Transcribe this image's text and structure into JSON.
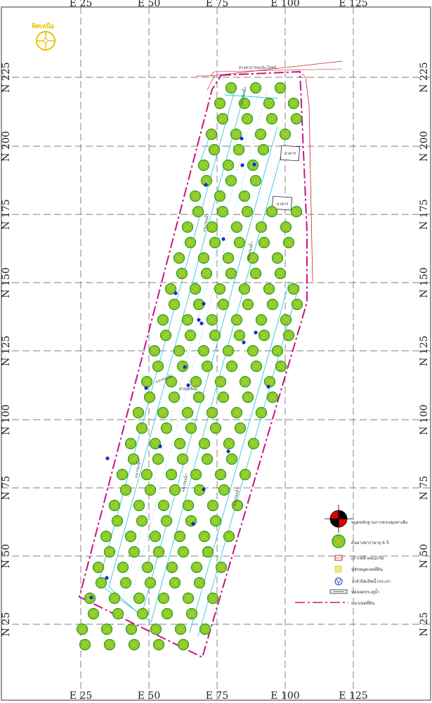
{
  "grid": {
    "x_labels": [
      "E 25",
      "E 50",
      "E 75",
      "E 100",
      "E 125"
    ],
    "y_labels": [
      "N 225",
      "N 200",
      "N 175",
      "N 150",
      "N 125",
      "N 100",
      "N 75",
      "N 50",
      "N 25"
    ]
  },
  "compass": {
    "label": "ทิศเหนือ"
  },
  "road": {
    "label": "ทางสาธารณประโยชน์"
  },
  "buildings": [
    {
      "label": "อาคาร"
    },
    {
      "label": "อาคาร"
    }
  ],
  "canal_labels": [
    "แนวร่องน้ำ",
    "แนวร่องน้ำ",
    "แนวร่องน้ำ",
    "แนวร่องน้ำ",
    "แนวร่องน้ำ",
    "แนวร่องน้ำ",
    "แนวร่องน้ำ"
  ],
  "area_label": "สวนทุเรียน",
  "legend": {
    "items": [
      {
        "icon": "benchmark-icon",
        "text": "หมุดหลักฐานการควบคุมทางดิ่ง"
      },
      {
        "icon": "tree-icon",
        "text": "ต้นยางพาราอายุ 6 ปี"
      },
      {
        "icon": "power-pole-icon",
        "text": "เสาไฟฟ้าคอนกรีต"
      },
      {
        "icon": "boundary-marker-icon",
        "text": "หลักหมุดเขตที่ดิน"
      },
      {
        "icon": "valve-icon",
        "text": "วาล์วปิดเปิดน้ำประปา"
      },
      {
        "icon": "culvert-icon",
        "text": "ท่อลอดประตูน้ำ"
      },
      {
        "icon": "boundary-line-icon",
        "text": "แนวเขตที่ดิน"
      }
    ]
  },
  "colors": {
    "boundary": "#c71585",
    "canal": "#33c8e0",
    "road": "#cc2222",
    "tree_fill": "#7dcf3a",
    "tree_ring": "#3a9a1a",
    "grid": "#555555",
    "compass": "#e6c200",
    "shrub": "#1a2ec8"
  }
}
